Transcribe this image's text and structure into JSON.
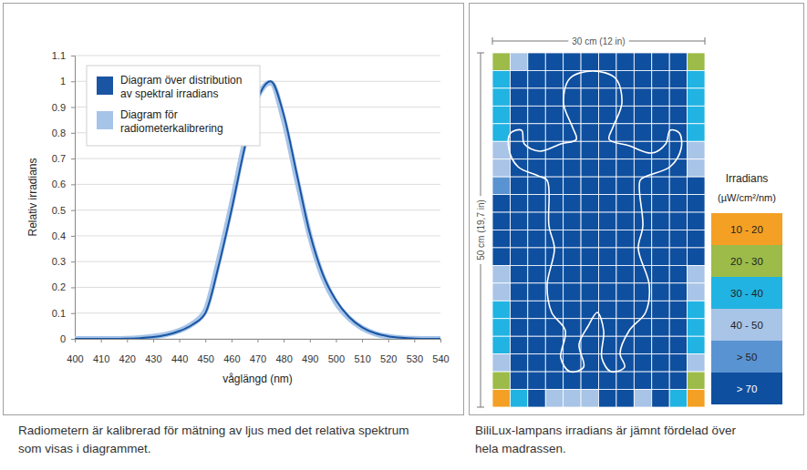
{
  "chart_data": [
    {
      "type": "line",
      "xlabel": "våglängd (nm)",
      "ylabel": "Relativ irradians",
      "caption": [
        "Radiometern är kalibrerad för mätning av ljus med det relativa spektrum",
        "som visas i diagrammet."
      ],
      "x": [
        400,
        405,
        410,
        415,
        420,
        425,
        430,
        435,
        440,
        445,
        450,
        455,
        460,
        465,
        470,
        475,
        480,
        485,
        490,
        495,
        500,
        505,
        510,
        515,
        520,
        525,
        530,
        535,
        540
      ],
      "series": [
        {
          "name": "Diagram för radiometerkalibrering",
          "color": "#a6c4e8",
          "values": [
            0,
            0,
            0,
            0,
            0.001,
            0.004,
            0.009,
            0.017,
            0.032,
            0.058,
            0.11,
            0.3,
            0.52,
            0.76,
            0.94,
            0.995,
            0.85,
            0.62,
            0.4,
            0.24,
            0.14,
            0.08,
            0.042,
            0.02,
            0.009,
            0.003,
            0.001,
            0,
            0
          ]
        },
        {
          "name": "Diagram över distribution av spektral irradians",
          "color": "#1a55a3",
          "values": [
            0,
            0,
            0,
            0,
            0.001,
            0.003,
            0.007,
            0.015,
            0.03,
            0.055,
            0.1,
            0.28,
            0.5,
            0.74,
            0.93,
            1.0,
            0.87,
            0.64,
            0.41,
            0.25,
            0.15,
            0.085,
            0.045,
            0.022,
            0.01,
            0.004,
            0.001,
            0,
            0
          ]
        }
      ],
      "xlim": [
        400,
        540
      ],
      "xticks": [
        400,
        410,
        420,
        430,
        440,
        450,
        460,
        470,
        480,
        490,
        500,
        510,
        520,
        530,
        540
      ],
      "ylim": [
        0,
        1.1
      ],
      "yticks": [
        0,
        0.1,
        0.2,
        0.3,
        0.4,
        0.5,
        0.6,
        0.7,
        0.8,
        0.9,
        1,
        1.1
      ],
      "grid": true,
      "legend": "upper left"
    },
    {
      "type": "heatmap",
      "xlabel": "30 cm (12 in)",
      "ylabel": "50 cm (19,7 in)",
      "caption": [
        "BiliLux-lampans irradians är jämnt fördelad över",
        "hela madrassen."
      ],
      "cells": [
        [
          25,
          45,
          75,
          75,
          75,
          75,
          75,
          75,
          75,
          75,
          75,
          25
        ],
        [
          35,
          75,
          75,
          75,
          75,
          75,
          75,
          75,
          75,
          75,
          75,
          35
        ],
        [
          35,
          75,
          75,
          75,
          75,
          75,
          75,
          75,
          75,
          75,
          75,
          35
        ],
        [
          35,
          75,
          75,
          75,
          75,
          75,
          75,
          75,
          75,
          75,
          75,
          35
        ],
        [
          35,
          75,
          75,
          75,
          75,
          75,
          75,
          75,
          75,
          75,
          75,
          35
        ],
        [
          45,
          75,
          75,
          75,
          75,
          75,
          75,
          75,
          75,
          75,
          75,
          45
        ],
        [
          45,
          75,
          75,
          75,
          75,
          75,
          75,
          75,
          75,
          75,
          75,
          45
        ],
        [
          60,
          75,
          75,
          75,
          75,
          75,
          75,
          75,
          75,
          75,
          75,
          75
        ],
        [
          75,
          75,
          75,
          75,
          75,
          75,
          75,
          75,
          75,
          75,
          75,
          75
        ],
        [
          75,
          75,
          75,
          75,
          75,
          75,
          75,
          75,
          75,
          75,
          75,
          75
        ],
        [
          75,
          75,
          75,
          75,
          75,
          75,
          75,
          75,
          75,
          75,
          75,
          75
        ],
        [
          75,
          75,
          75,
          75,
          75,
          75,
          75,
          75,
          75,
          75,
          75,
          75
        ],
        [
          45,
          75,
          75,
          75,
          75,
          75,
          75,
          75,
          75,
          75,
          75,
          45
        ],
        [
          45,
          75,
          75,
          75,
          75,
          75,
          75,
          75,
          75,
          75,
          75,
          45
        ],
        [
          35,
          75,
          75,
          75,
          75,
          75,
          75,
          75,
          75,
          75,
          75,
          35
        ],
        [
          35,
          75,
          75,
          75,
          75,
          75,
          75,
          75,
          75,
          75,
          75,
          35
        ],
        [
          35,
          75,
          75,
          75,
          75,
          75,
          75,
          75,
          75,
          75,
          75,
          35
        ],
        [
          45,
          75,
          75,
          75,
          75,
          75,
          75,
          75,
          75,
          75,
          75,
          45
        ],
        [
          25,
          75,
          75,
          75,
          75,
          75,
          75,
          75,
          75,
          75,
          75,
          25
        ],
        [
          15,
          35,
          75,
          45,
          45,
          45,
          75,
          75,
          45,
          75,
          35,
          15
        ]
      ],
      "colorbar": {
        "title": "Irradians",
        "unit": "(µW/cm²/nm)",
        "ticks": [
          {
            "value": 10,
            "label": "10 - 20"
          },
          {
            "value": 20,
            "label": "20 - 30"
          },
          {
            "value": 30,
            "label": "30 - 40"
          },
          {
            "value": 40,
            "label": "40 - 50"
          },
          {
            "value": 50,
            "label": "> 50"
          },
          {
            "value": 70,
            "label": "> 70"
          }
        ],
        "colors": [
          "#f4a024",
          "#9cbb49",
          "#21b3e2",
          "#a8c4e6",
          "#5a93d1",
          "#0f4f9f"
        ]
      }
    }
  ]
}
